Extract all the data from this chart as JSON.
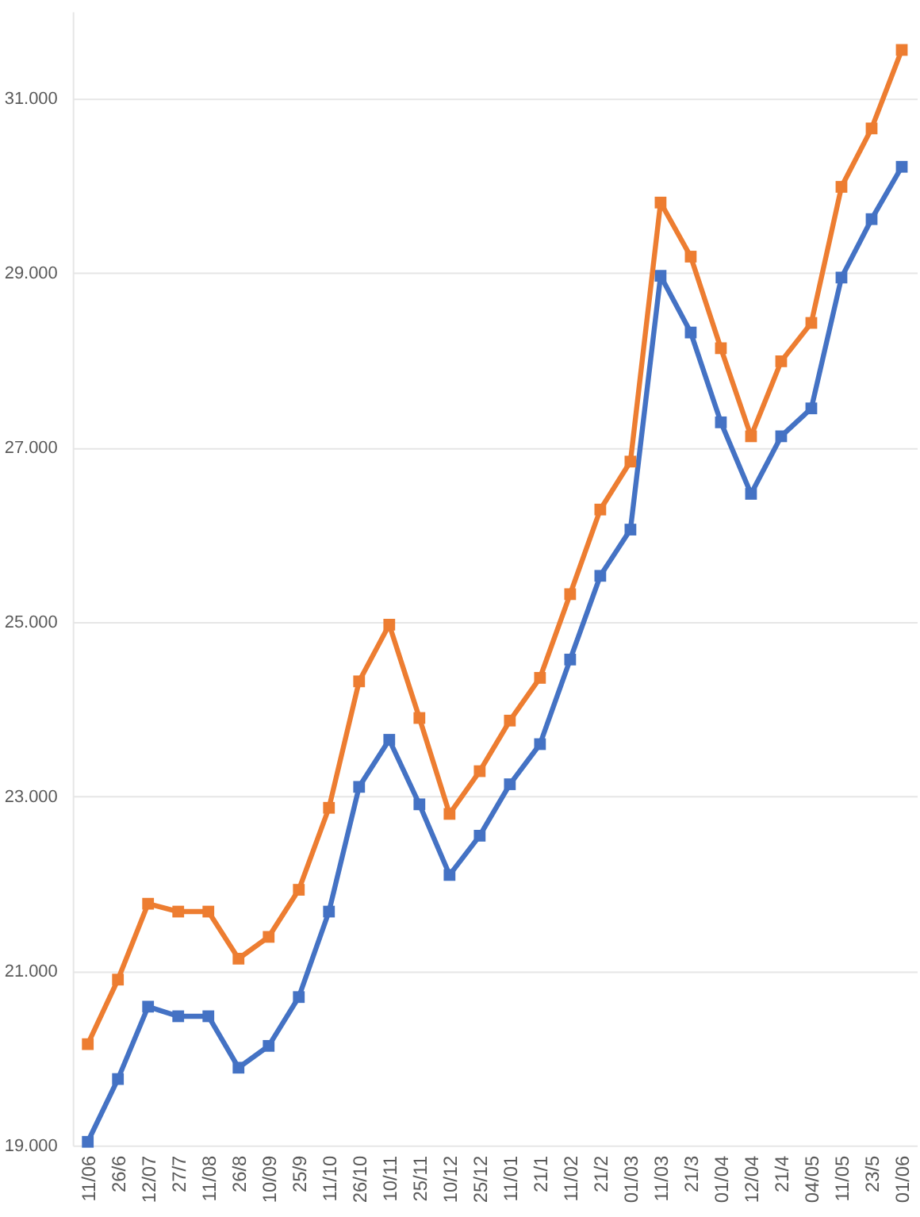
{
  "chart_data": {
    "type": "line",
    "categories": [
      "11/06",
      "26/6",
      "12/07",
      "27/7",
      "11/08",
      "26/8",
      "10/09",
      "25/9",
      "11/10",
      "26/10",
      "10/11",
      "25/11",
      "10/12",
      "25/12",
      "11/01",
      "21/1",
      "11/02",
      "21/2",
      "01/03",
      "11/03",
      "21/3",
      "01/04",
      "12/04",
      "21/4",
      "04/05",
      "11/05",
      "23/5",
      "01/06"
    ],
    "series": [
      {
        "color": "#4472c4",
        "values": [
          19040,
          19760,
          20590,
          20480,
          20480,
          19890,
          20140,
          20700,
          21680,
          23110,
          23650,
          22910,
          22100,
          22550,
          23140,
          23600,
          24570,
          25530,
          26060,
          28970,
          28320,
          27290,
          26470,
          27130,
          27450,
          28950,
          29620,
          30220
        ]
      },
      {
        "color": "#ed7d31",
        "values": [
          20160,
          20900,
          21770,
          21680,
          21680,
          21140,
          21390,
          21930,
          22870,
          24320,
          24970,
          23900,
          22800,
          23290,
          23870,
          24360,
          25320,
          26290,
          26840,
          29810,
          29190,
          28140,
          27130,
          27990,
          28430,
          29990,
          30660,
          31560
        ]
      }
    ],
    "ylim": [
      19000,
      32000
    ],
    "yticks": [
      {
        "value": 19000,
        "label": "19.000"
      },
      {
        "value": 21000,
        "label": "21.000"
      },
      {
        "value": 23000,
        "label": "23.000"
      },
      {
        "value": 25000,
        "label": "25.000"
      },
      {
        "value": 27000,
        "label": "27.000"
      },
      {
        "value": 29000,
        "label": "29.000"
      },
      {
        "value": 31000,
        "label": "31.000"
      }
    ],
    "grid": "y",
    "marker": "square"
  }
}
